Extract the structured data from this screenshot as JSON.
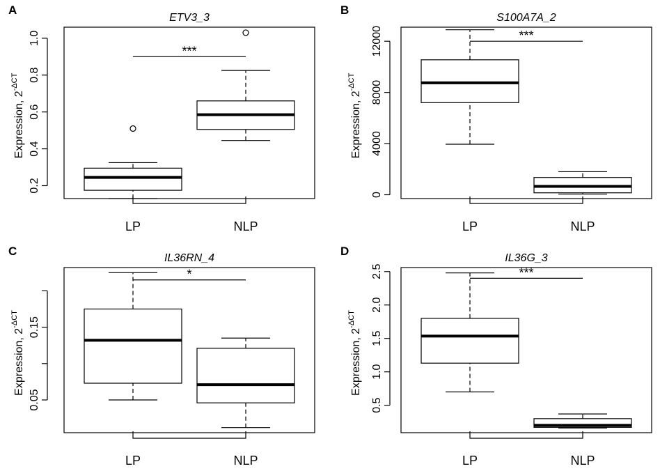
{
  "chart_data": [
    {
      "panel": "A",
      "type": "boxplot",
      "title": "ETV3_3",
      "xlabel": "",
      "ylabel_base": "Expression, 2",
      "ylabel_exponent": "-ΔCT",
      "ylim": [
        0.13,
        1.06
      ],
      "yticks": [
        0.2,
        0.4,
        0.6,
        0.8,
        1.0
      ],
      "ytick_labels": [
        "0.2",
        "0.4",
        "0.6",
        "0.8",
        "1.0"
      ],
      "categories": [
        "LP",
        "NLP"
      ],
      "boxes": [
        {
          "category": "LP",
          "whisker_low": 0.13,
          "q1": 0.175,
          "median": 0.245,
          "q3": 0.295,
          "whisker_high": 0.325,
          "outliers": [
            0.51
          ]
        },
        {
          "category": "NLP",
          "whisker_low": 0.445,
          "q1": 0.505,
          "median": 0.585,
          "q3": 0.66,
          "whisker_high": 0.825,
          "outliers": [
            1.03
          ]
        }
      ],
      "significance": {
        "label": "***",
        "y": 0.9
      },
      "grid": false
    },
    {
      "panel": "B",
      "type": "boxplot",
      "title": "S100A7A_2",
      "xlabel": "",
      "ylabel_base": "Expression, 2",
      "ylabel_exponent": "-ΔCT",
      "ylim": [
        -300,
        13100
      ],
      "yticks": [
        0,
        4000,
        8000,
        12000
      ],
      "ytick_labels": [
        "0",
        "4000",
        "8000",
        "12000"
      ],
      "categories": [
        "LP",
        "NLP"
      ],
      "boxes": [
        {
          "category": "LP",
          "whisker_low": 3950,
          "q1": 7200,
          "median": 8750,
          "q3": 10550,
          "whisker_high": 12900,
          "outliers": []
        },
        {
          "category": "NLP",
          "whisker_low": 50,
          "q1": 150,
          "median": 650,
          "q3": 1350,
          "whisker_high": 1800,
          "outliers": []
        }
      ],
      "significance": {
        "label": "***",
        "y": 12000
      },
      "grid": false
    },
    {
      "panel": "C",
      "type": "boxplot",
      "title": "IL36RN_4",
      "xlabel": "",
      "ylabel_base": "Expression, 2",
      "ylabel_exponent": "-ΔCT",
      "ylim": [
        0.005,
        0.232
      ],
      "yticks": [
        0.05,
        0.1,
        0.15,
        0.2
      ],
      "ytick_labels": [
        "0.05",
        "",
        "0.15",
        ""
      ],
      "categories": [
        "LP",
        "NLP"
      ],
      "boxes": [
        {
          "category": "LP",
          "whisker_low": 0.05,
          "q1": 0.073,
          "median": 0.132,
          "q3": 0.175,
          "whisker_high": 0.225,
          "outliers": []
        },
        {
          "category": "NLP",
          "whisker_low": 0.012,
          "q1": 0.046,
          "median": 0.071,
          "q3": 0.121,
          "whisker_high": 0.135,
          "outliers": []
        }
      ],
      "significance": {
        "label": "*",
        "y": 0.215
      },
      "grid": false
    },
    {
      "panel": "D",
      "type": "boxplot",
      "title": "IL36G_3",
      "xlabel": "",
      "ylabel_base": "Expression, 2",
      "ylabel_exponent": "-ΔCT",
      "ylim": [
        0.09,
        2.56
      ],
      "yticks": [
        0.5,
        1.0,
        1.5,
        2.0,
        2.5
      ],
      "ytick_labels": [
        "0.5",
        "1.0",
        "1.5",
        "2.0",
        "2.5"
      ],
      "categories": [
        "LP",
        "NLP"
      ],
      "boxes": [
        {
          "category": "LP",
          "whisker_low": 0.7,
          "q1": 1.13,
          "median": 1.535,
          "q3": 1.8,
          "whisker_high": 2.48,
          "outliers": []
        },
        {
          "category": "NLP",
          "whisker_low": 0.16,
          "q1": 0.17,
          "median": 0.2,
          "q3": 0.3,
          "whisker_high": 0.37,
          "outliers": []
        }
      ],
      "significance": {
        "label": "***",
        "y": 2.4
      },
      "grid": false
    }
  ]
}
